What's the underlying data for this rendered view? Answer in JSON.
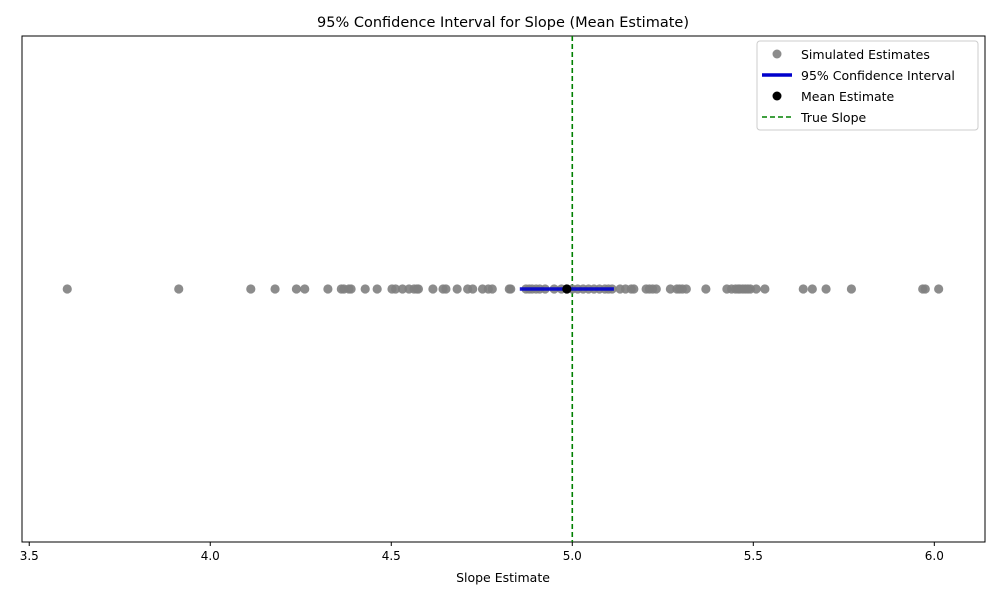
{
  "chart_data": {
    "type": "scatter",
    "title": "95% Confidence Interval for Slope (Mean Estimate)",
    "xlabel": "Slope Estimate",
    "ylabel": "",
    "xlim": [
      3.48,
      6.14
    ],
    "xticks": [
      3.5,
      4.0,
      4.5,
      5.0,
      5.5,
      6.0
    ],
    "xtick_labels": [
      "3.5",
      "4.0",
      "4.5",
      "5.0",
      "5.5",
      "6.0"
    ],
    "grid": false,
    "legend_position": "top-right",
    "colors": {
      "estimates": "#808080",
      "ci": "#0000cc",
      "mean": "#000000",
      "true_slope": "#008000"
    },
    "series": [
      {
        "name": "Simulated Estimates",
        "kind": "scatter",
        "x": [
          3.605,
          3.913,
          4.112,
          4.179,
          4.238,
          4.261,
          4.325,
          4.362,
          4.369,
          4.383,
          4.389,
          4.428,
          4.461,
          4.502,
          4.512,
          4.531,
          4.549,
          4.563,
          4.571,
          4.575,
          4.615,
          4.643,
          4.651,
          4.682,
          4.711,
          4.725,
          4.752,
          4.768,
          4.779,
          4.826,
          4.83,
          4.872,
          4.881,
          4.889,
          4.9,
          4.91,
          4.925,
          4.95,
          4.97,
          4.985,
          5.0,
          5.015,
          5.03,
          5.045,
          5.06,
          5.075,
          5.09,
          5.1,
          5.11,
          5.132,
          5.147,
          5.163,
          5.17,
          5.204,
          5.213,
          5.222,
          5.232,
          5.271,
          5.289,
          5.296,
          5.304,
          5.315,
          5.369,
          5.427,
          5.44,
          5.451,
          5.458,
          5.463,
          5.471,
          5.478,
          5.485,
          5.492,
          5.508,
          5.532,
          5.638,
          5.663,
          5.701,
          5.771,
          5.968,
          5.975,
          6.012
        ],
        "y": 0
      },
      {
        "name": "95% Confidence Interval",
        "kind": "interval",
        "low": 4.855,
        "high": 5.115,
        "y": 0
      },
      {
        "name": "Mean Estimate",
        "kind": "point",
        "x": 4.985,
        "y": 0
      },
      {
        "name": "True Slope",
        "kind": "vline",
        "x": 5.0
      }
    ]
  }
}
